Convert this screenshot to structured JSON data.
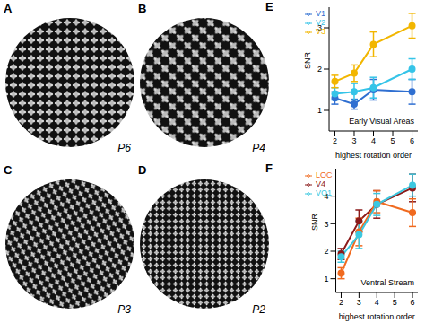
{
  "images": [
    {
      "panel": "A",
      "label": "P6"
    },
    {
      "panel": "B",
      "label": "P4"
    },
    {
      "panel": "C",
      "label": "P3"
    },
    {
      "panel": "D",
      "label": "P2"
    }
  ],
  "chart_data": [
    {
      "type": "line",
      "annotation": "E",
      "subtitle": "Early Visual Areas",
      "x_label": "highest rotation order",
      "y_label": "SNR",
      "x": [
        2,
        3,
        4,
        6
      ],
      "xlim": [
        1.7,
        6.3
      ],
      "xticks": [
        2,
        3,
        4,
        5,
        6
      ],
      "ylim": [
        0.5,
        3.5
      ],
      "yticks": [
        1,
        2,
        3
      ],
      "legend": "upper left",
      "marker": "circle",
      "series": [
        {
          "name": "V1",
          "color": "#2f6fd1",
          "values": [
            1.3,
            1.15,
            1.5,
            1.45
          ],
          "errors": [
            0.15,
            0.12,
            0.25,
            0.3
          ]
        },
        {
          "name": "V2",
          "color": "#35c4e8",
          "values": [
            1.4,
            1.45,
            1.55,
            2.0
          ],
          "errors": [
            0.15,
            0.2,
            0.25,
            0.25
          ]
        },
        {
          "name": "V3",
          "color": "#f2b600",
          "values": [
            1.7,
            1.9,
            2.6,
            3.05
          ],
          "errors": [
            0.15,
            0.2,
            0.3,
            0.3
          ]
        }
      ]
    },
    {
      "type": "line",
      "annotation": "F",
      "subtitle": "Ventral Stream",
      "x_label": "highest rotation order",
      "y_label": "SNR",
      "x": [
        2,
        3,
        4,
        6
      ],
      "xlim": [
        1.7,
        6.3
      ],
      "xticks": [
        2,
        3,
        4,
        5,
        6
      ],
      "ylim": [
        0.5,
        5
      ],
      "yticks": [
        1,
        2,
        3,
        4
      ],
      "legend": "upper left",
      "marker": "circle",
      "series": [
        {
          "name": "V4",
          "color": "#8b1a1a",
          "values": [
            1.9,
            3.1,
            3.7,
            4.3
          ],
          "errors": [
            0.2,
            0.4,
            0.5,
            0.5
          ]
        },
        {
          "name": "LOC",
          "color": "#f06a1f",
          "values": [
            1.2,
            2.7,
            3.8,
            3.4
          ],
          "errors": [
            0.2,
            0.5,
            0.4,
            0.5
          ]
        },
        {
          "name": "VO1",
          "color": "#3cc8e0",
          "values": [
            1.8,
            2.6,
            3.7,
            4.4
          ],
          "errors": [
            0.2,
            0.5,
            0.4,
            0.4
          ]
        }
      ]
    }
  ]
}
